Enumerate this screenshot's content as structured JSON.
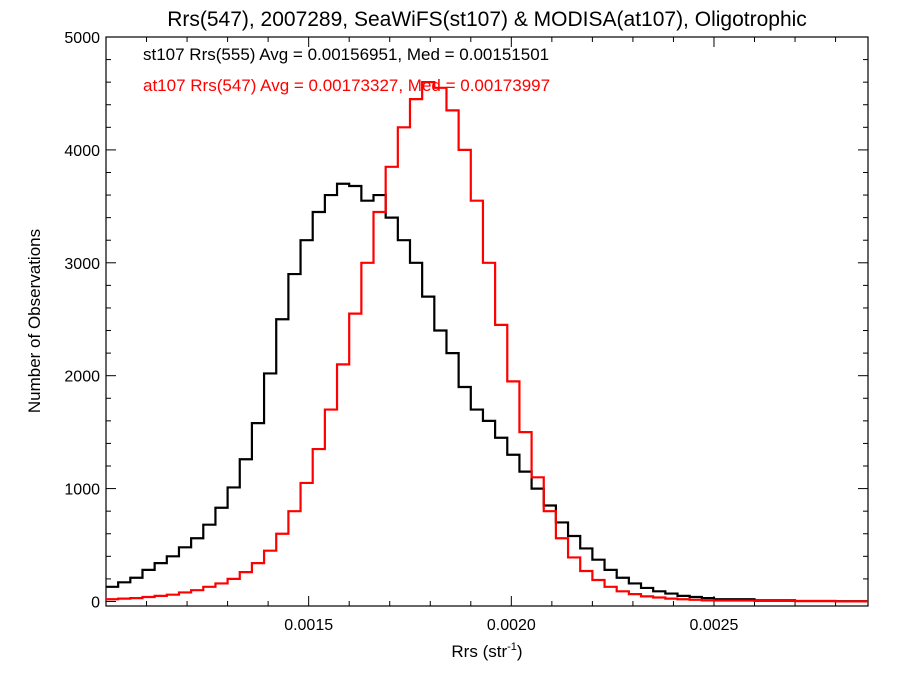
{
  "chart_data": {
    "type": "line",
    "title": "Rrs(547), 2007289, SeaWiFS(st107) & MODISA(at107), Oligotrophic",
    "xlabel": "Rrs (str",
    "xlabel_sup": "-1",
    "xlabel_close": ")",
    "ylabel": "Number of Observations",
    "xlim": [
      0.001,
      0.00288
    ],
    "ylim": [
      -40,
      5000
    ],
    "x_ticks": [
      0.0015,
      0.002,
      0.0025
    ],
    "x_tick_labels": [
      "0.0015",
      "0.0020",
      "0.0025"
    ],
    "y_ticks": [
      0,
      1000,
      2000,
      3000,
      4000,
      5000
    ],
    "y_tick_labels": [
      "0",
      "1000",
      "2000",
      "3000",
      "4000",
      "5000"
    ],
    "step": "histogram",
    "legend": [
      {
        "text": "st107 Rrs(555) Avg = 0.00156951, Med = 0.00151501",
        "color": "#000000"
      },
      {
        "text": "at107 Rrs(547) Avg = 0.00173327, Med = 0.00173997",
        "color": "#ff0000"
      }
    ],
    "series": [
      {
        "color": "#000000",
        "points": [
          [
            0.001,
            130
          ],
          [
            0.00103,
            170
          ],
          [
            0.00106,
            210
          ],
          [
            0.00109,
            280
          ],
          [
            0.00112,
            340
          ],
          [
            0.00115,
            400
          ],
          [
            0.00118,
            480
          ],
          [
            0.00121,
            560
          ],
          [
            0.00124,
            680
          ],
          [
            0.00127,
            830
          ],
          [
            0.0013,
            1010
          ],
          [
            0.00133,
            1260
          ],
          [
            0.00136,
            1580
          ],
          [
            0.00139,
            2020
          ],
          [
            0.00142,
            2500
          ],
          [
            0.00145,
            2900
          ],
          [
            0.00148,
            3200
          ],
          [
            0.00151,
            3450
          ],
          [
            0.00154,
            3600
          ],
          [
            0.00157,
            3700
          ],
          [
            0.0016,
            3680
          ],
          [
            0.00163,
            3550
          ],
          [
            0.00166,
            3600
          ],
          [
            0.00169,
            3400
          ],
          [
            0.00172,
            3200
          ],
          [
            0.00175,
            3000
          ],
          [
            0.00178,
            2700
          ],
          [
            0.00181,
            2400
          ],
          [
            0.00184,
            2200
          ],
          [
            0.00187,
            1900
          ],
          [
            0.0019,
            1700
          ],
          [
            0.00193,
            1600
          ],
          [
            0.00196,
            1450
          ],
          [
            0.00199,
            1300
          ],
          [
            0.00202,
            1150
          ],
          [
            0.00205,
            1000
          ],
          [
            0.00208,
            850
          ],
          [
            0.00211,
            700
          ],
          [
            0.00214,
            580
          ],
          [
            0.00217,
            470
          ],
          [
            0.0022,
            370
          ],
          [
            0.00223,
            280
          ],
          [
            0.00226,
            210
          ],
          [
            0.00229,
            160
          ],
          [
            0.00232,
            120
          ],
          [
            0.00235,
            90
          ],
          [
            0.00238,
            70
          ],
          [
            0.00241,
            50
          ],
          [
            0.00244,
            40
          ],
          [
            0.00247,
            30
          ],
          [
            0.0025,
            20
          ],
          [
            0.0026,
            10
          ],
          [
            0.0027,
            5
          ],
          [
            0.0028,
            2
          ],
          [
            0.00288,
            0
          ]
        ]
      },
      {
        "color": "#ff0000",
        "points": [
          [
            0.001,
            20
          ],
          [
            0.00103,
            25
          ],
          [
            0.00106,
            30
          ],
          [
            0.00109,
            40
          ],
          [
            0.00112,
            50
          ],
          [
            0.00115,
            60
          ],
          [
            0.00118,
            80
          ],
          [
            0.00121,
            100
          ],
          [
            0.00124,
            130
          ],
          [
            0.00127,
            160
          ],
          [
            0.0013,
            200
          ],
          [
            0.00133,
            260
          ],
          [
            0.00136,
            340
          ],
          [
            0.00139,
            450
          ],
          [
            0.00142,
            600
          ],
          [
            0.00145,
            800
          ],
          [
            0.00148,
            1050
          ],
          [
            0.00151,
            1350
          ],
          [
            0.00154,
            1700
          ],
          [
            0.00157,
            2100
          ],
          [
            0.0016,
            2550
          ],
          [
            0.00163,
            3000
          ],
          [
            0.00166,
            3450
          ],
          [
            0.00169,
            3850
          ],
          [
            0.00172,
            4200
          ],
          [
            0.00175,
            4450
          ],
          [
            0.00178,
            4600
          ],
          [
            0.00181,
            4550
          ],
          [
            0.00184,
            4350
          ],
          [
            0.00187,
            4000
          ],
          [
            0.0019,
            3550
          ],
          [
            0.00193,
            3000
          ],
          [
            0.00196,
            2450
          ],
          [
            0.00199,
            1950
          ],
          [
            0.00202,
            1500
          ],
          [
            0.00205,
            1100
          ],
          [
            0.00208,
            800
          ],
          [
            0.00211,
            560
          ],
          [
            0.00214,
            390
          ],
          [
            0.00217,
            270
          ],
          [
            0.0022,
            190
          ],
          [
            0.00223,
            130
          ],
          [
            0.00226,
            90
          ],
          [
            0.00229,
            65
          ],
          [
            0.00232,
            45
          ],
          [
            0.00235,
            35
          ],
          [
            0.00238,
            25
          ],
          [
            0.00241,
            20
          ],
          [
            0.00244,
            15
          ],
          [
            0.00247,
            10
          ],
          [
            0.0025,
            8
          ],
          [
            0.0026,
            5
          ],
          [
            0.0027,
            3
          ],
          [
            0.0028,
            1
          ],
          [
            0.00288,
            0
          ]
        ]
      }
    ]
  }
}
